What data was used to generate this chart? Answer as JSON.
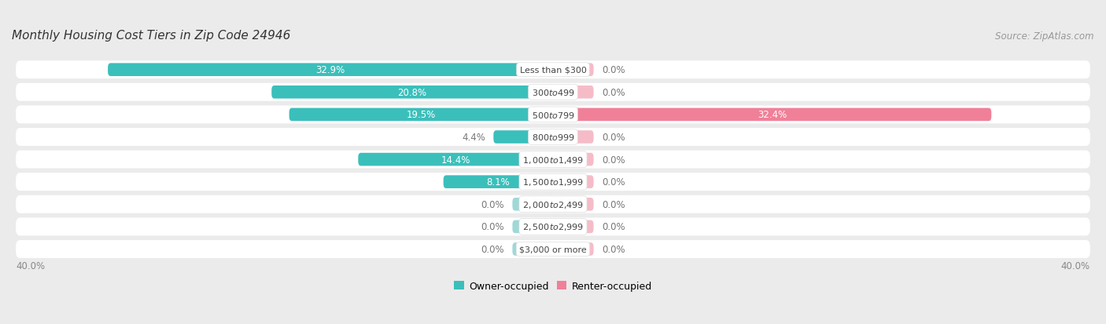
{
  "title": "Monthly Housing Cost Tiers in Zip Code 24946",
  "source": "Source: ZipAtlas.com",
  "categories": [
    "Less than $300",
    "$300 to $499",
    "$500 to $799",
    "$800 to $999",
    "$1,000 to $1,499",
    "$1,500 to $1,999",
    "$2,000 to $2,499",
    "$2,500 to $2,999",
    "$3,000 or more"
  ],
  "owner_values": [
    32.9,
    20.8,
    19.5,
    4.4,
    14.4,
    8.1,
    0.0,
    0.0,
    0.0
  ],
  "renter_values": [
    0.0,
    0.0,
    32.4,
    0.0,
    0.0,
    0.0,
    0.0,
    0.0,
    0.0
  ],
  "owner_color": "#3bbfbb",
  "renter_color": "#f08098",
  "owner_color_zero": "#a0d8d8",
  "renter_color_zero": "#f5bcc8",
  "bg_color": "#ebebeb",
  "row_bg_color": "#ffffff",
  "axis_limit": 40.0,
  "zero_stub": 3.0,
  "label_fontsize": 8.5,
  "cat_fontsize": 8.0,
  "title_fontsize": 11,
  "source_fontsize": 8.5,
  "bar_height": 0.58,
  "row_padding": 0.22,
  "legend_fontsize": 9
}
